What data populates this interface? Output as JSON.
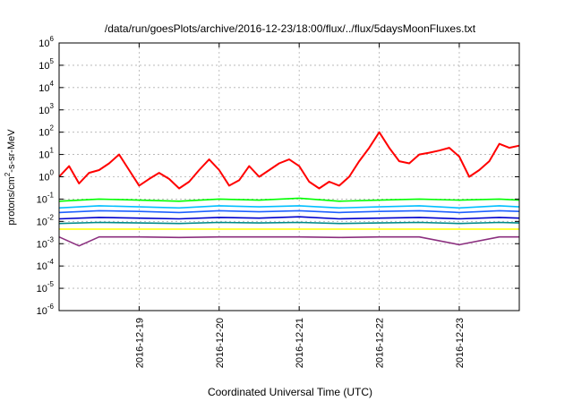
{
  "chart_data": {
    "type": "line",
    "title": "/data/run/goesPlots/archive/2016-12-23/18:00/flux/../flux/5daysMoonFluxes.txt",
    "xlabel": "Coordinated Universal Time (UTC)",
    "ylabel": {
      "base": "protons/cm",
      "sup": "2",
      "rest": "-s-sr-MeV"
    },
    "yscale": "log",
    "ylim_exp": [
      -6,
      6
    ],
    "xlim": [
      "2016-12-18 00:00",
      "2016-12-23 18:00"
    ],
    "xticks": [
      "2016-12-19",
      "2016-12-20",
      "2016-12-21",
      "2016-12-22",
      "2016-12-23"
    ],
    "grid": true,
    "series": [
      {
        "color": "#ff0000",
        "times": [
          "2016-12-18 00:00",
          "2016-12-18 03:00",
          "2016-12-18 06:00",
          "2016-12-18 09:00",
          "2016-12-18 12:00",
          "2016-12-18 15:00",
          "2016-12-18 18:00",
          "2016-12-18 21:00",
          "2016-12-19 00:00",
          "2016-12-19 03:00",
          "2016-12-19 06:00",
          "2016-12-19 09:00",
          "2016-12-19 12:00",
          "2016-12-19 15:00",
          "2016-12-19 18:00",
          "2016-12-19 21:00",
          "2016-12-20 00:00",
          "2016-12-20 03:00",
          "2016-12-20 06:00",
          "2016-12-20 09:00",
          "2016-12-20 12:00",
          "2016-12-20 15:00",
          "2016-12-20 18:00",
          "2016-12-20 21:00",
          "2016-12-21 00:00",
          "2016-12-21 03:00",
          "2016-12-21 06:00",
          "2016-12-21 09:00",
          "2016-12-21 12:00",
          "2016-12-21 15:00",
          "2016-12-21 18:00",
          "2016-12-21 21:00",
          "2016-12-22 00:00",
          "2016-12-22 03:00",
          "2016-12-22 06:00",
          "2016-12-22 09:00",
          "2016-12-22 12:00",
          "2016-12-22 15:00",
          "2016-12-22 18:00",
          "2016-12-22 21:00",
          "2016-12-23 00:00",
          "2016-12-23 03:00",
          "2016-12-23 06:00",
          "2016-12-23 09:00",
          "2016-12-23 12:00",
          "2016-12-23 15:00",
          "2016-12-23 18:00"
        ],
        "values": [
          1.0,
          3.0,
          0.5,
          1.5,
          2.0,
          4.0,
          10.0,
          2.0,
          0.4,
          0.8,
          1.5,
          0.8,
          0.3,
          0.6,
          2.0,
          6.0,
          2.0,
          0.4,
          0.7,
          3.0,
          1.0,
          2.0,
          4.0,
          6.0,
          3.0,
          0.6,
          0.3,
          0.6,
          0.4,
          1.0,
          5.0,
          20.0,
          100.0,
          20.0,
          5.0,
          4.0,
          10.0,
          12.0,
          15.0,
          20.0,
          8.0,
          1.0,
          2.0,
          5.0,
          30.0,
          20.0,
          25.0
        ]
      },
      {
        "color": "#00ff00",
        "times": [
          "2016-12-18 00:00",
          "2016-12-18 12:00",
          "2016-12-19 00:00",
          "2016-12-19 12:00",
          "2016-12-20 00:00",
          "2016-12-20 12:00",
          "2016-12-21 00:00",
          "2016-12-21 12:00",
          "2016-12-22 00:00",
          "2016-12-22 12:00",
          "2016-12-23 00:00",
          "2016-12-23 12:00",
          "2016-12-23 18:00"
        ],
        "values": [
          0.08,
          0.1,
          0.09,
          0.08,
          0.1,
          0.09,
          0.11,
          0.08,
          0.09,
          0.1,
          0.09,
          0.1,
          0.09
        ]
      },
      {
        "color": "#00bfff",
        "times": [
          "2016-12-18 00:00",
          "2016-12-18 12:00",
          "2016-12-19 00:00",
          "2016-12-19 12:00",
          "2016-12-20 00:00",
          "2016-12-20 12:00",
          "2016-12-21 00:00",
          "2016-12-21 12:00",
          "2016-12-22 00:00",
          "2016-12-22 12:00",
          "2016-12-23 00:00",
          "2016-12-23 12:00",
          "2016-12-23 18:00"
        ],
        "values": [
          0.04,
          0.05,
          0.045,
          0.04,
          0.05,
          0.045,
          0.05,
          0.04,
          0.045,
          0.05,
          0.04,
          0.05,
          0.045
        ]
      },
      {
        "color": "#1e60ff",
        "times": [
          "2016-12-18 00:00",
          "2016-12-18 12:00",
          "2016-12-19 00:00",
          "2016-12-19 12:00",
          "2016-12-20 00:00",
          "2016-12-20 12:00",
          "2016-12-21 00:00",
          "2016-12-21 12:00",
          "2016-12-22 00:00",
          "2016-12-22 12:00",
          "2016-12-23 00:00",
          "2016-12-23 12:00",
          "2016-12-23 18:00"
        ],
        "values": [
          0.025,
          0.03,
          0.028,
          0.025,
          0.03,
          0.027,
          0.03,
          0.025,
          0.028,
          0.03,
          0.025,
          0.03,
          0.028
        ]
      },
      {
        "color": "#0000cc",
        "times": [
          "2016-12-18 00:00",
          "2016-12-18 12:00",
          "2016-12-19 00:00",
          "2016-12-19 12:00",
          "2016-12-20 00:00",
          "2016-12-20 12:00",
          "2016-12-21 00:00",
          "2016-12-21 12:00",
          "2016-12-22 00:00",
          "2016-12-22 12:00",
          "2016-12-23 00:00",
          "2016-12-23 12:00",
          "2016-12-23 18:00"
        ],
        "values": [
          0.013,
          0.015,
          0.014,
          0.013,
          0.015,
          0.014,
          0.016,
          0.013,
          0.014,
          0.015,
          0.013,
          0.015,
          0.014
        ]
      },
      {
        "color": "#008b8b",
        "times": [
          "2016-12-18 00:00",
          "2016-12-18 12:00",
          "2016-12-19 00:00",
          "2016-12-19 12:00",
          "2016-12-20 00:00",
          "2016-12-20 12:00",
          "2016-12-21 00:00",
          "2016-12-21 12:00",
          "2016-12-22 00:00",
          "2016-12-22 12:00",
          "2016-12-23 00:00",
          "2016-12-23 12:00",
          "2016-12-23 18:00"
        ],
        "values": [
          0.008,
          0.009,
          0.0085,
          0.008,
          0.009,
          0.0085,
          0.009,
          0.008,
          0.0085,
          0.009,
          0.008,
          0.009,
          0.0085
        ]
      },
      {
        "color": "#ffff00",
        "times": [
          "2016-12-18 00:00",
          "2016-12-18 12:00",
          "2016-12-19 00:00",
          "2016-12-19 12:00",
          "2016-12-20 00:00",
          "2016-12-20 12:00",
          "2016-12-21 00:00",
          "2016-12-21 12:00",
          "2016-12-22 00:00",
          "2016-12-22 12:00",
          "2016-12-23 00:00",
          "2016-12-23 12:00",
          "2016-12-23 18:00"
        ],
        "values": [
          0.0045,
          0.0045,
          0.0045,
          0.0045,
          0.0045,
          0.0045,
          0.0045,
          0.0045,
          0.0045,
          0.0045,
          0.0045,
          0.0045,
          0.0045
        ]
      },
      {
        "color": "#8b2f7f",
        "times": [
          "2016-12-18 00:00",
          "2016-12-18 06:00",
          "2016-12-18 12:00",
          "2016-12-19 00:00",
          "2016-12-19 12:00",
          "2016-12-20 00:00",
          "2016-12-20 12:00",
          "2016-12-21 00:00",
          "2016-12-21 12:00",
          "2016-12-22 00:00",
          "2016-12-22 12:00",
          "2016-12-23 00:00",
          "2016-12-23 12:00",
          "2016-12-23 18:00"
        ],
        "values": [
          0.002,
          0.0008,
          0.002,
          0.002,
          0.0019,
          0.002,
          0.002,
          0.002,
          0.0019,
          0.002,
          0.002,
          0.0009,
          0.002,
          0.002
        ]
      }
    ]
  }
}
